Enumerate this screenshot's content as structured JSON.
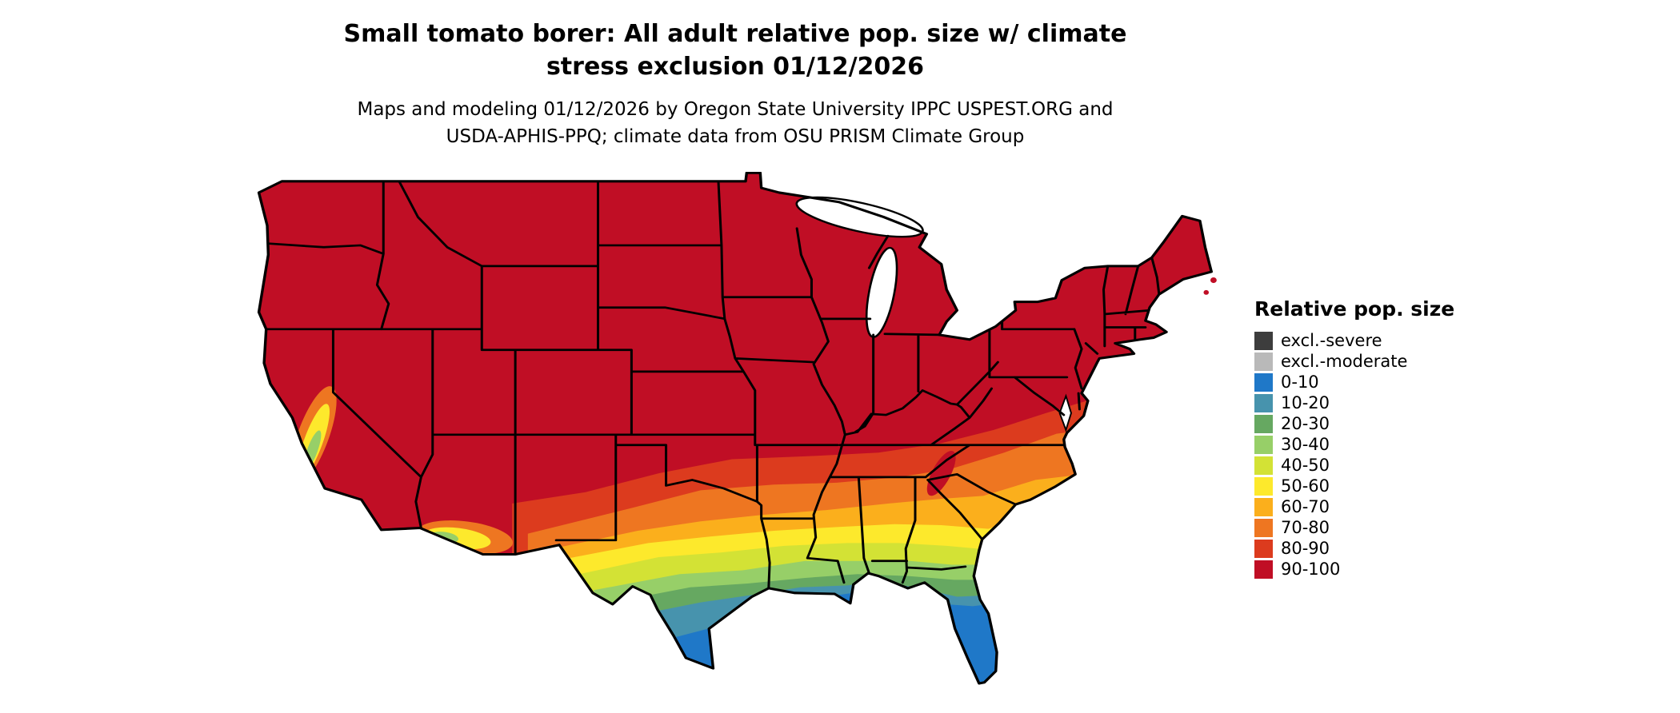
{
  "header": {
    "title": "Small tomato borer: All adult relative pop. size w/ climate\nstress exclusion 01/12/2026",
    "subtitle": "Maps and modeling 01/12/2026 by Oregon State University IPPC USPEST.ORG and\nUSDA-APHIS-PPQ; climate data from OSU PRISM Climate Group"
  },
  "legend": {
    "title": "Relative pop. size",
    "entries": [
      {
        "label": "excl.-severe",
        "color": "#3d3d3d"
      },
      {
        "label": "excl.-moderate",
        "color": "#b9b9b9"
      },
      {
        "label": "0-10",
        "color": "#1f78c8"
      },
      {
        "label": "10-20",
        "color": "#4793ad"
      },
      {
        "label": "20-30",
        "color": "#66a861"
      },
      {
        "label": "30-40",
        "color": "#97cf68"
      },
      {
        "label": "40-50",
        "color": "#d3e235"
      },
      {
        "label": "50-60",
        "color": "#fde92c"
      },
      {
        "label": "60-70",
        "color": "#fbaf1c"
      },
      {
        "label": "70-80",
        "color": "#ee7621"
      },
      {
        "label": "80-90",
        "color": "#dc3b1e"
      },
      {
        "label": "90-100",
        "color": "#c00e25"
      }
    ]
  }
}
